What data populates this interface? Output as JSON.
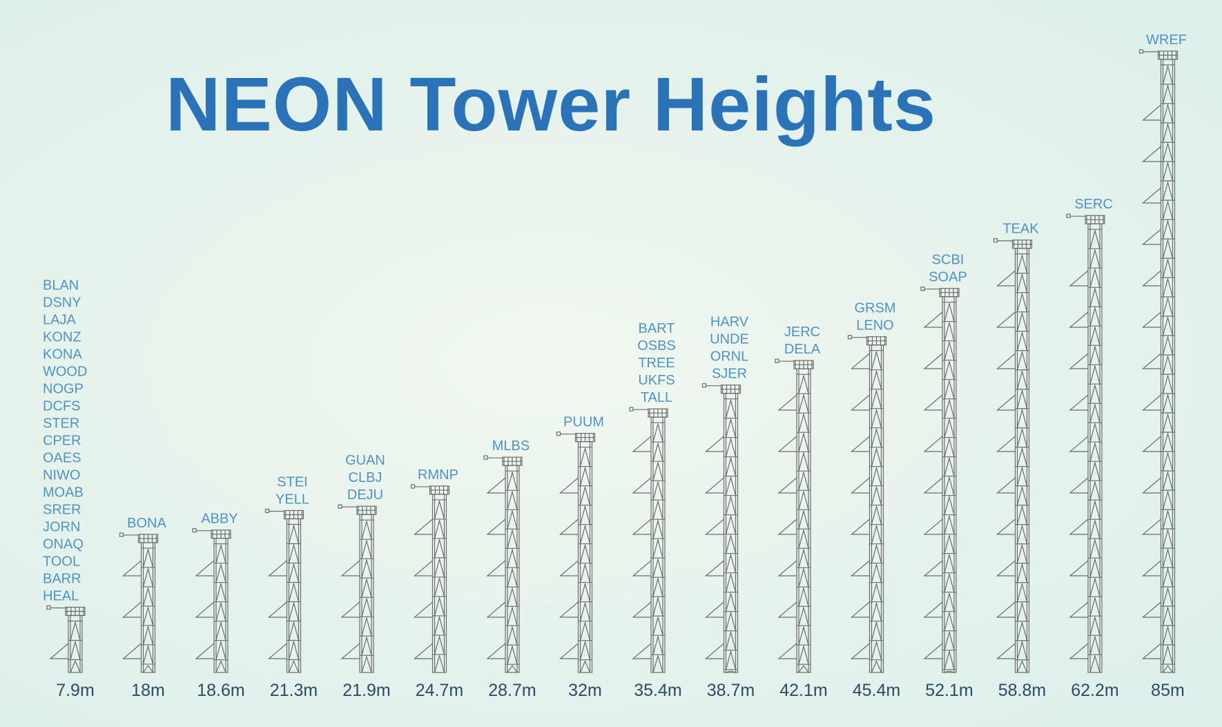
{
  "title": "NEON Tower Heights",
  "colors": {
    "title": "#2a73b9",
    "site_label": "#4e93c2",
    "value_label": "#2d4a66",
    "tower": "#6b6b6b"
  },
  "chart_data": {
    "type": "bar",
    "title": "NEON Tower Heights",
    "xlabel": "",
    "ylabel": "",
    "ylim": [
      0,
      85
    ],
    "grid": false,
    "categories": [
      "7.9m",
      "18m",
      "18.6m",
      "21.3m",
      "21.9m",
      "24.7m",
      "28.7m",
      "32m",
      "35.4m",
      "38.7m",
      "42.1m",
      "45.4m",
      "52.1m",
      "58.8m",
      "62.2m",
      "85m"
    ],
    "values": [
      7.9,
      18,
      18.6,
      21.3,
      21.9,
      24.7,
      28.7,
      32,
      35.4,
      38.7,
      42.1,
      45.4,
      52.1,
      58.8,
      62.2,
      85
    ],
    "sites": [
      [
        "BLAN",
        "DSNY",
        "LAJA",
        "KONZ",
        "KONA",
        "WOOD",
        "NOGP",
        "DCFS",
        "STER",
        "CPER",
        "OAES",
        "NIWO",
        "MOAB",
        "SRER",
        "JORN",
        "ONAQ",
        "TOOL",
        "BARR",
        "HEAL"
      ],
      [
        "BONA"
      ],
      [
        "ABBY"
      ],
      [
        "STEI",
        "YELL"
      ],
      [
        "GUAN",
        "CLBJ",
        "DEJU"
      ],
      [
        "RMNP"
      ],
      [
        "MLBS"
      ],
      [
        "PUUM"
      ],
      [
        "BART",
        "OSBS",
        "TREE",
        "UKFS",
        "TALL"
      ],
      [
        "HARV",
        "UNDE",
        "ORNL",
        "SJER"
      ],
      [
        "JERC",
        "DELA"
      ],
      [
        "GRSM",
        "LENO"
      ],
      [
        "SCBI",
        "SOAP"
      ],
      [
        "TEAK"
      ],
      [
        "SERC"
      ],
      [
        "WREF"
      ]
    ]
  }
}
